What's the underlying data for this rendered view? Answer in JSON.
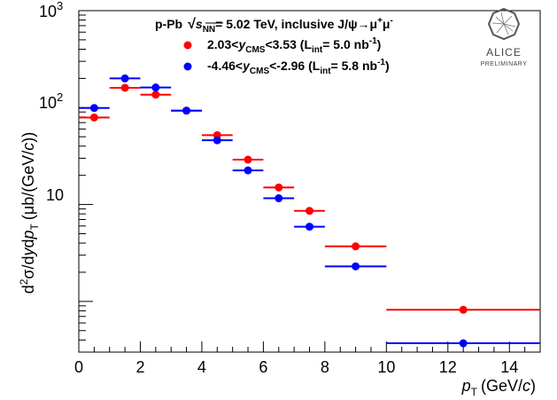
{
  "chart_data": {
    "type": "scatter",
    "title": "p-Pb √s_NN = 5.02 TeV, inclusive J/ψ→μ⁺μ⁻",
    "xlabel": "p_T (GeV/c)",
    "ylabel": "d²σ/dydp_T (μb/(GeV/c))",
    "xlim": [
      0,
      15
    ],
    "ylim": [
      0.3,
      1000
    ],
    "yscale": "log",
    "x_ticks": [
      0,
      2,
      4,
      6,
      8,
      10,
      12,
      14
    ],
    "y_tick_labels": [
      "10",
      "10²",
      "10³"
    ],
    "legend_position": "top-center",
    "series": [
      {
        "name": "2.03<y_CMS<3.53 (L_int = 5.0 nb⁻¹)",
        "color": "#ff0000",
        "x": [
          0.5,
          1.5,
          2.5,
          3.5,
          4.5,
          5.5,
          6.5,
          7.5,
          9.0,
          12.5
        ],
        "xerr": [
          0.5,
          0.5,
          0.5,
          0.5,
          0.5,
          0.5,
          0.5,
          0.5,
          1.0,
          2.5
        ],
        "y": [
          79,
          160,
          136,
          93,
          52,
          29,
          15,
          8.6,
          3.7,
          0.82
        ]
      },
      {
        "name": "-4.46<y_CMS<-2.96 (L_int = 5.8 nb⁻¹)",
        "color": "#0000ff",
        "x": [
          0.5,
          1.5,
          2.5,
          3.5,
          4.5,
          5.5,
          6.5,
          7.5,
          9.0,
          12.5
        ],
        "xerr": [
          0.5,
          0.5,
          0.5,
          0.5,
          0.5,
          0.5,
          0.5,
          0.5,
          1.0,
          2.5
        ],
        "y": [
          99,
          200,
          161,
          93,
          46,
          22.5,
          11.6,
          5.9,
          2.3,
          0.37
        ]
      }
    ]
  },
  "legend": {
    "system": "p-Pb",
    "sqrt": "√",
    "s": "s",
    "nn": "NN",
    "energy": "= 5.02 TeV, inclusive J/ψ→μ",
    "plus": "+",
    "mu": "μ",
    "minus": "-",
    "red_pre": "2.03<",
    "red_post": "<3.53  (L",
    "red_lumi": "= 5.0 nb",
    "blue_pre": "-4.46<",
    "blue_post": "<-2.96 (L",
    "blue_lumi": "= 5.8 nb",
    "y_sym": "y",
    "cms_sub": "CMS",
    "int_sub": "int",
    "exp": "-1",
    "close": ")"
  },
  "axes": {
    "xlabel_p": "p",
    "xlabel_T": "T",
    "xlabel_unit": "(GeV/",
    "xlabel_c": "c",
    "xlabel_close": ")",
    "ylabel_d": "d",
    "ylabel_2": "2",
    "ylabel_sigma": "σ/d",
    "ylabel_y": "y",
    "ylabel_dp": "d",
    "ylabel_p": "p",
    "ylabel_T": "T",
    "ylabel_unit": "(μb/(GeV/",
    "ylabel_c": "c",
    "ylabel_close": "))",
    "ytick_10": "10",
    "ytick_e2": "2",
    "ytick_e3": "3"
  },
  "logo": {
    "name": "ALICE",
    "status": "PRELIMINARY"
  }
}
